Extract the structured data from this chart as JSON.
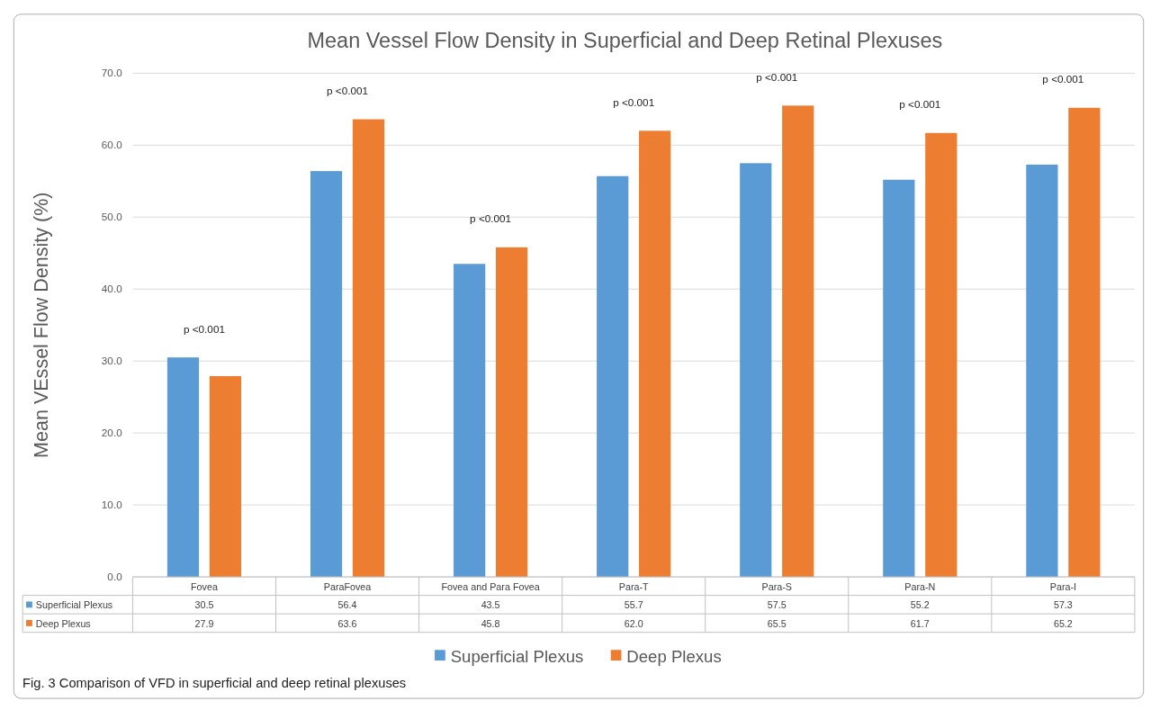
{
  "chart_data": {
    "type": "bar",
    "title": "Mean Vessel Flow Density in Superficial and Deep Retinal Plexuses",
    "ylabel": "Mean VEssel Flow Density  (%)",
    "categories": [
      "Fovea",
      "ParaFovea",
      "Fovea and Para Fovea",
      "Para-T",
      "Para-S",
      "Para-N",
      "Para-I"
    ],
    "series": [
      {
        "name": "Superficial Plexus",
        "color": "#5b9bd5",
        "values": [
          30.5,
          56.4,
          43.5,
          55.7,
          57.5,
          55.2,
          57.3
        ],
        "value_labels": [
          "30.5",
          "56.4",
          "43.5",
          "55.7",
          "57.5",
          "55.2",
          "57.3"
        ]
      },
      {
        "name": "Deep Plexus",
        "color": "#ed7d31",
        "values": [
          27.9,
          63.6,
          45.8,
          62.0,
          65.5,
          61.7,
          65.2
        ],
        "value_labels": [
          "27.9",
          "63.6",
          "45.8",
          "62.0",
          "65.5",
          "61.7",
          "65.2"
        ]
      }
    ],
    "ylim": [
      0,
      70
    ],
    "yticks": [
      {
        "value": 0,
        "label": "0.0"
      },
      {
        "value": 10,
        "label": "10.0"
      },
      {
        "value": 20,
        "label": "20.0"
      },
      {
        "value": 30,
        "label": "30.0"
      },
      {
        "value": 40,
        "label": "40.0"
      },
      {
        "value": 50,
        "label": "50.0"
      },
      {
        "value": 60,
        "label": "60.0"
      },
      {
        "value": 70,
        "label": "70.0"
      }
    ],
    "grid": "y",
    "legend": "bottom",
    "annotations": [
      "p <0.001",
      "p <0.001",
      "p <0.001",
      "p <0.001",
      "p <0.001",
      "p <0.001",
      "p <0.001",
      "Fig. 3  Comparison of VFD in superficial and deep retinal plexuses"
    ]
  }
}
